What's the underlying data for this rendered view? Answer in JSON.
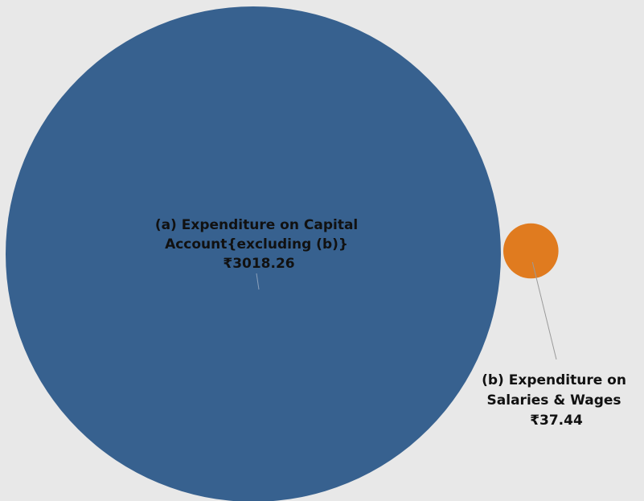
{
  "chart_data": {
    "type": "bubble",
    "colors": {
      "background": "#e8e8e8",
      "leader_line": "#9a9a9a",
      "label_text": "#111111"
    },
    "bubbles": [
      {
        "label_lines": [
          "(a) Expenditure on Capital",
          "Account{excluding (b)}",
          "₹3018.26"
        ],
        "value": 3018.26,
        "color": "#37618f"
      },
      {
        "label_lines": [
          "(b) Expenditure on",
          "Salaries & Wages",
          "₹37.44"
        ],
        "value": 37.44,
        "color": "#e07b1f"
      }
    ]
  }
}
